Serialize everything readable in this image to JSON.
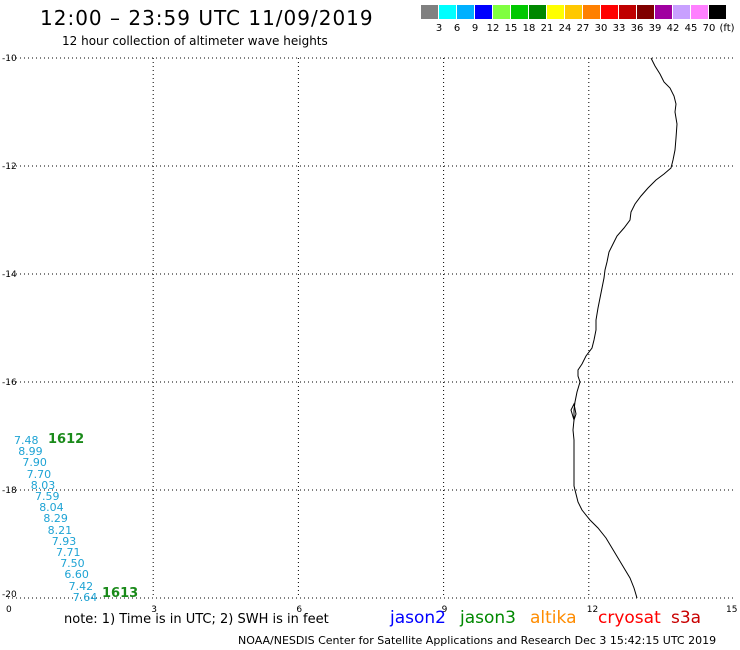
{
  "header": {
    "title": "12:00 – 23:59 UTC 11/09/2019",
    "subtitle": "12 hour collection of altimeter wave heights"
  },
  "color_scale": {
    "swatches": [
      "#808080",
      "#00ffff",
      "#00b0ff",
      "#0000ff",
      "#80ff40",
      "#00c800",
      "#008800",
      "#ffff00",
      "#ffc800",
      "#ff8000",
      "#ff0000",
      "#c00000",
      "#800000",
      "#a000a0",
      "#c8a0ff",
      "#ff80ff",
      "#000000"
    ],
    "labels": [
      "3",
      "6",
      "9",
      "12",
      "15",
      "18",
      "21",
      "24",
      "27",
      "30",
      "33",
      "36",
      "39",
      "42",
      "45",
      "70",
      "(ft)"
    ]
  },
  "map": {
    "lon_ticks": [
      "0",
      "3",
      "6",
      "9",
      "12",
      "15"
    ],
    "lat_ticks": [
      "-10",
      "-12",
      "-14",
      "-16",
      "-18",
      "-20"
    ],
    "grid_color": "#000000",
    "coast_color": "#000000"
  },
  "measurements": {
    "color": "#1ea3d4",
    "values": [
      "7.48",
      "8.99",
      "7.90",
      "7.70",
      "8.03",
      "7.59",
      "8.04",
      "8.29",
      "8.21",
      "7.93",
      "7.71",
      "7.50",
      "6.60",
      "7.42",
      "7.64"
    ]
  },
  "pass_labels": {
    "color": "#1a8a1a",
    "top": "1612",
    "bottom": "1613"
  },
  "footer": {
    "note": "note: 1) Time is in UTC; 2) SWH is in feet",
    "satellites": [
      {
        "name": "jason2",
        "color": "#0000ff"
      },
      {
        "name": "jason3",
        "color": "#008800"
      },
      {
        "name": "altika",
        "color": "#ff8c00"
      },
      {
        "name": "cryosat",
        "color": "#ff0000"
      },
      {
        "name": "s3a",
        "color": "#c80000"
      }
    ],
    "credit": "NOAA/NESDIS Center for Satellite Applications and Research    Dec  3 15:42:15 UTC 2019"
  }
}
